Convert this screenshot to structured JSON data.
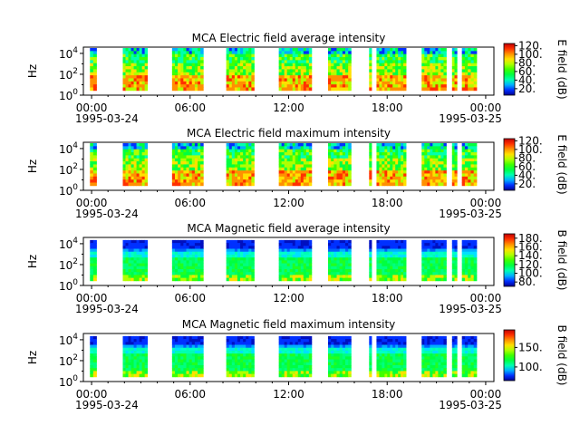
{
  "chart_data": [
    {
      "type": "heatmap",
      "title": "MCA  Electric field average intensity",
      "ylabel": "Hz",
      "colorbar_label": "E field (dB)",
      "colorbar_ticks": [
        "120.",
        "100.",
        "80.",
        "60.",
        "40.",
        "20."
      ],
      "colorbar_tick_values": [
        120,
        100,
        80,
        60,
        40,
        20
      ],
      "colorbar_range": [
        5,
        125
      ],
      "y_ticks": [
        {
          "base": "10",
          "exp": "4",
          "value": 4
        },
        {
          "base": "10",
          "exp": "2",
          "value": 2
        },
        {
          "base": "10",
          "exp": "0",
          "value": 0
        }
      ],
      "ylim_log10": [
        0,
        4.6
      ],
      "profile": "efield_avg"
    },
    {
      "type": "heatmap",
      "title": "MCA  Electric field maximum intensity",
      "ylabel": "Hz",
      "colorbar_label": "E field (dB)",
      "colorbar_ticks": [
        "120.",
        "100.",
        "80.",
        "60.",
        "40.",
        "20."
      ],
      "colorbar_tick_values": [
        120,
        100,
        80,
        60,
        40,
        20
      ],
      "colorbar_range": [
        5,
        125
      ],
      "y_ticks": [
        {
          "base": "10",
          "exp": "4",
          "value": 4
        },
        {
          "base": "10",
          "exp": "2",
          "value": 2
        },
        {
          "base": "10",
          "exp": "0",
          "value": 0
        }
      ],
      "ylim_log10": [
        0,
        4.6
      ],
      "profile": "efield_max"
    },
    {
      "type": "heatmap",
      "title": "MCA  Magnetic field average intensity",
      "ylabel": "Hz",
      "colorbar_label": "B field (dB)",
      "colorbar_ticks": [
        "180.",
        "160.",
        "140.",
        "120.",
        "100.",
        "80."
      ],
      "colorbar_tick_values": [
        180,
        160,
        140,
        120,
        100,
        80
      ],
      "colorbar_range": [
        70,
        190
      ],
      "y_ticks": [
        {
          "base": "10",
          "exp": "4",
          "value": 4
        },
        {
          "base": "10",
          "exp": "2",
          "value": 2
        },
        {
          "base": "10",
          "exp": "0",
          "value": 0
        }
      ],
      "ylim_log10": [
        0,
        4.6
      ],
      "profile": "bfield_avg"
    },
    {
      "type": "heatmap",
      "title": "MCA  Magnetic field maximum intensity",
      "ylabel": "Hz",
      "colorbar_label": "B field (dB)",
      "colorbar_ticks": [
        "150.",
        "100."
      ],
      "colorbar_tick_values": [
        150,
        100
      ],
      "colorbar_range": [
        65,
        195
      ],
      "y_ticks": [
        {
          "base": "10",
          "exp": "4",
          "value": 4
        },
        {
          "base": "10",
          "exp": "2",
          "value": 2
        },
        {
          "base": "10",
          "exp": "0",
          "value": 0
        }
      ],
      "ylim_log10": [
        0,
        4.6
      ],
      "profile": "bfield_max"
    }
  ],
  "x_axis": {
    "xlim_hours": [
      -0.5,
      24.5
    ],
    "major_ticks_hours": [
      0,
      6,
      12,
      18,
      24
    ],
    "tick_labels": [
      "00:00",
      "06:00",
      "12:00",
      "18:00",
      "00:00"
    ],
    "date_left": "1995-03-24",
    "date_right": "1995-03-25"
  },
  "data_intervals_hours": [
    [
      -0.1,
      0.3
    ],
    [
      1.9,
      3.4
    ],
    [
      4.9,
      6.8
    ],
    [
      8.2,
      9.9
    ],
    [
      11.4,
      13.4
    ],
    [
      14.4,
      15.8
    ],
    [
      16.9,
      17.05
    ],
    [
      17.35,
      19.15
    ],
    [
      20.1,
      21.6
    ],
    [
      21.95,
      22.25
    ],
    [
      22.55,
      23.45
    ]
  ],
  "colors": {
    "colormap": [
      "#000090",
      "#0030ff",
      "#00b0ff",
      "#00ffb0",
      "#00ff40",
      "#40ff00",
      "#b0ff00",
      "#ffe000",
      "#ff9000",
      "#ff3000",
      "#c00000"
    ]
  }
}
